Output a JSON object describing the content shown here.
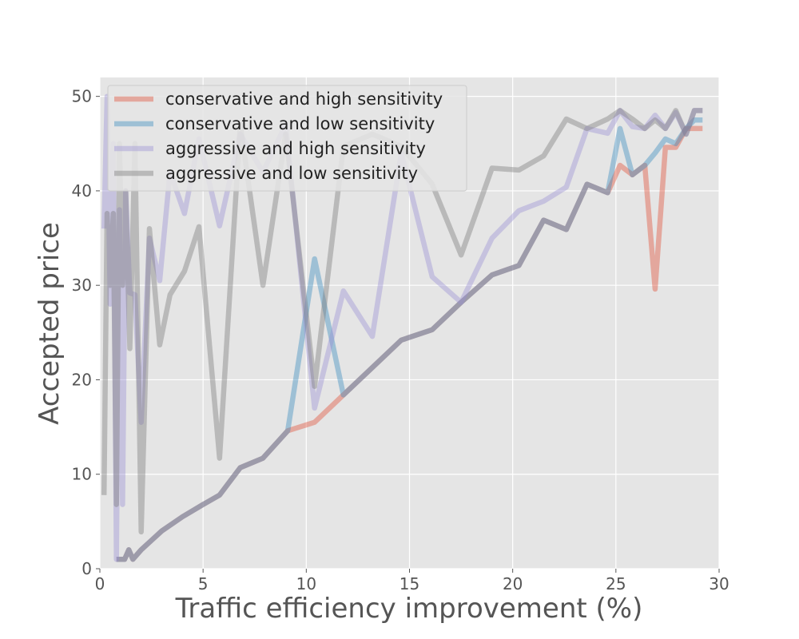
{
  "chart_data": {
    "type": "line",
    "title": "",
    "xlabel": "Traffic efficiency improvement (%)",
    "ylabel": "Accepted price",
    "xlim": [
      0,
      30
    ],
    "ylim": [
      0,
      52
    ],
    "xticks": [
      0,
      5,
      10,
      15,
      20,
      25,
      30
    ],
    "yticks": [
      0,
      10,
      20,
      30,
      40,
      50
    ],
    "grid": true,
    "legend_position": "top-left",
    "background": "#e5e5e5",
    "series": [
      {
        "name": "conservative and high sensitivity",
        "color": "#e24a33",
        "x": [
          0.8,
          1.0,
          1.2,
          1.4,
          1.6,
          2.0,
          2.5,
          3.0,
          4.0,
          5.0,
          5.8,
          6.8,
          7.9,
          9.1,
          10.4,
          11.8,
          13.2,
          14.6,
          16.1,
          17.5,
          19.0,
          20.3,
          21.5,
          22.6,
          23.6,
          24.6,
          25.2,
          25.8,
          26.4,
          26.9,
          27.4,
          27.9,
          28.4,
          28.8,
          29.2
        ],
        "values": [
          1.0,
          1.0,
          1.0,
          2.0,
          1.0,
          2.0,
          3.0,
          4.0,
          5.5,
          6.8,
          7.8,
          10.7,
          11.7,
          14.6,
          15.5,
          18.4,
          21.3,
          24.2,
          25.3,
          28.2,
          31.1,
          32.1,
          36.9,
          35.9,
          40.7,
          39.8,
          42.7,
          41.7,
          42.7,
          29.6,
          44.6,
          44.6,
          46.6,
          46.6,
          46.6
        ]
      },
      {
        "name": "conservative and low sensitivity",
        "color": "#348abd",
        "x": [
          0.8,
          1.0,
          1.2,
          1.4,
          1.6,
          2.0,
          2.5,
          3.0,
          4.0,
          5.0,
          5.8,
          6.8,
          7.9,
          9.1,
          10.4,
          11.8,
          13.2,
          14.6,
          16.1,
          17.5,
          19.0,
          20.3,
          21.5,
          22.6,
          23.6,
          24.6,
          25.2,
          25.8,
          26.4,
          26.9,
          27.4,
          27.9,
          28.4,
          28.8,
          29.2
        ],
        "values": [
          1.0,
          1.0,
          1.0,
          2.0,
          1.0,
          2.0,
          3.0,
          4.0,
          5.5,
          6.8,
          7.8,
          10.7,
          11.7,
          14.6,
          32.8,
          18.4,
          21.3,
          24.2,
          25.3,
          28.2,
          31.1,
          32.1,
          36.9,
          35.9,
          40.7,
          39.8,
          46.6,
          41.7,
          42.7,
          44.0,
          45.5,
          45.0,
          46.6,
          47.5,
          47.5
        ]
      },
      {
        "name": "aggressive and high sensitivity",
        "color": "#988ed5",
        "x": [
          0.2,
          0.35,
          0.5,
          0.65,
          0.8,
          0.95,
          1.1,
          1.25,
          1.45,
          1.7,
          2.0,
          2.4,
          2.9,
          3.4,
          4.1,
          4.8,
          5.8,
          6.8,
          7.9,
          9.0,
          10.4,
          11.8,
          13.2,
          14.6,
          16.1,
          17.5,
          19.0,
          20.3,
          21.5,
          22.6,
          23.6,
          24.6,
          25.2,
          25.8,
          26.4,
          26.9,
          27.4,
          27.9,
          28.4,
          28.8,
          29.2
        ],
        "values": [
          36.0,
          50.0,
          28.0,
          45.0,
          1.0,
          38.0,
          6.8,
          40.0,
          29.2,
          29.0,
          15.5,
          35.0,
          30.5,
          42.0,
          37.6,
          45.5,
          36.3,
          46.0,
          42.0,
          47.0,
          17.0,
          29.4,
          24.6,
          44.0,
          30.9,
          28.2,
          35.0,
          37.9,
          38.9,
          40.4,
          46.6,
          46.1,
          48.5,
          46.8,
          46.6,
          48.0,
          46.6,
          48.3,
          46.0,
          48.5,
          48.5
        ]
      },
      {
        "name": "aggressive and low sensitivity",
        "color": "#777777",
        "x": [
          0.2,
          0.35,
          0.5,
          0.65,
          0.8,
          0.95,
          1.1,
          1.25,
          1.45,
          1.7,
          2.0,
          2.4,
          2.9,
          3.4,
          4.1,
          4.8,
          5.8,
          6.8,
          7.9,
          9.0,
          10.4,
          11.8,
          13.2,
          14.6,
          16.1,
          17.5,
          19.0,
          20.3,
          21.5,
          22.6,
          23.6,
          24.6,
          25.2,
          25.8,
          26.4,
          26.9,
          27.4,
          27.9,
          28.4,
          28.8,
          29.2
        ],
        "values": [
          7.8,
          37.6,
          30.0,
          37.6,
          6.8,
          45.0,
          30.0,
          40.0,
          23.3,
          45.0,
          3.9,
          36.0,
          23.7,
          29.0,
          31.5,
          36.2,
          11.7,
          47.0,
          30.0,
          46.0,
          19.3,
          44.7,
          46.0,
          44.7,
          40.7,
          33.2,
          42.4,
          42.2,
          43.7,
          47.6,
          46.6,
          47.6,
          48.5,
          47.6,
          46.6,
          47.5,
          46.6,
          48.5,
          46.0,
          48.5,
          48.5
        ]
      }
    ]
  }
}
